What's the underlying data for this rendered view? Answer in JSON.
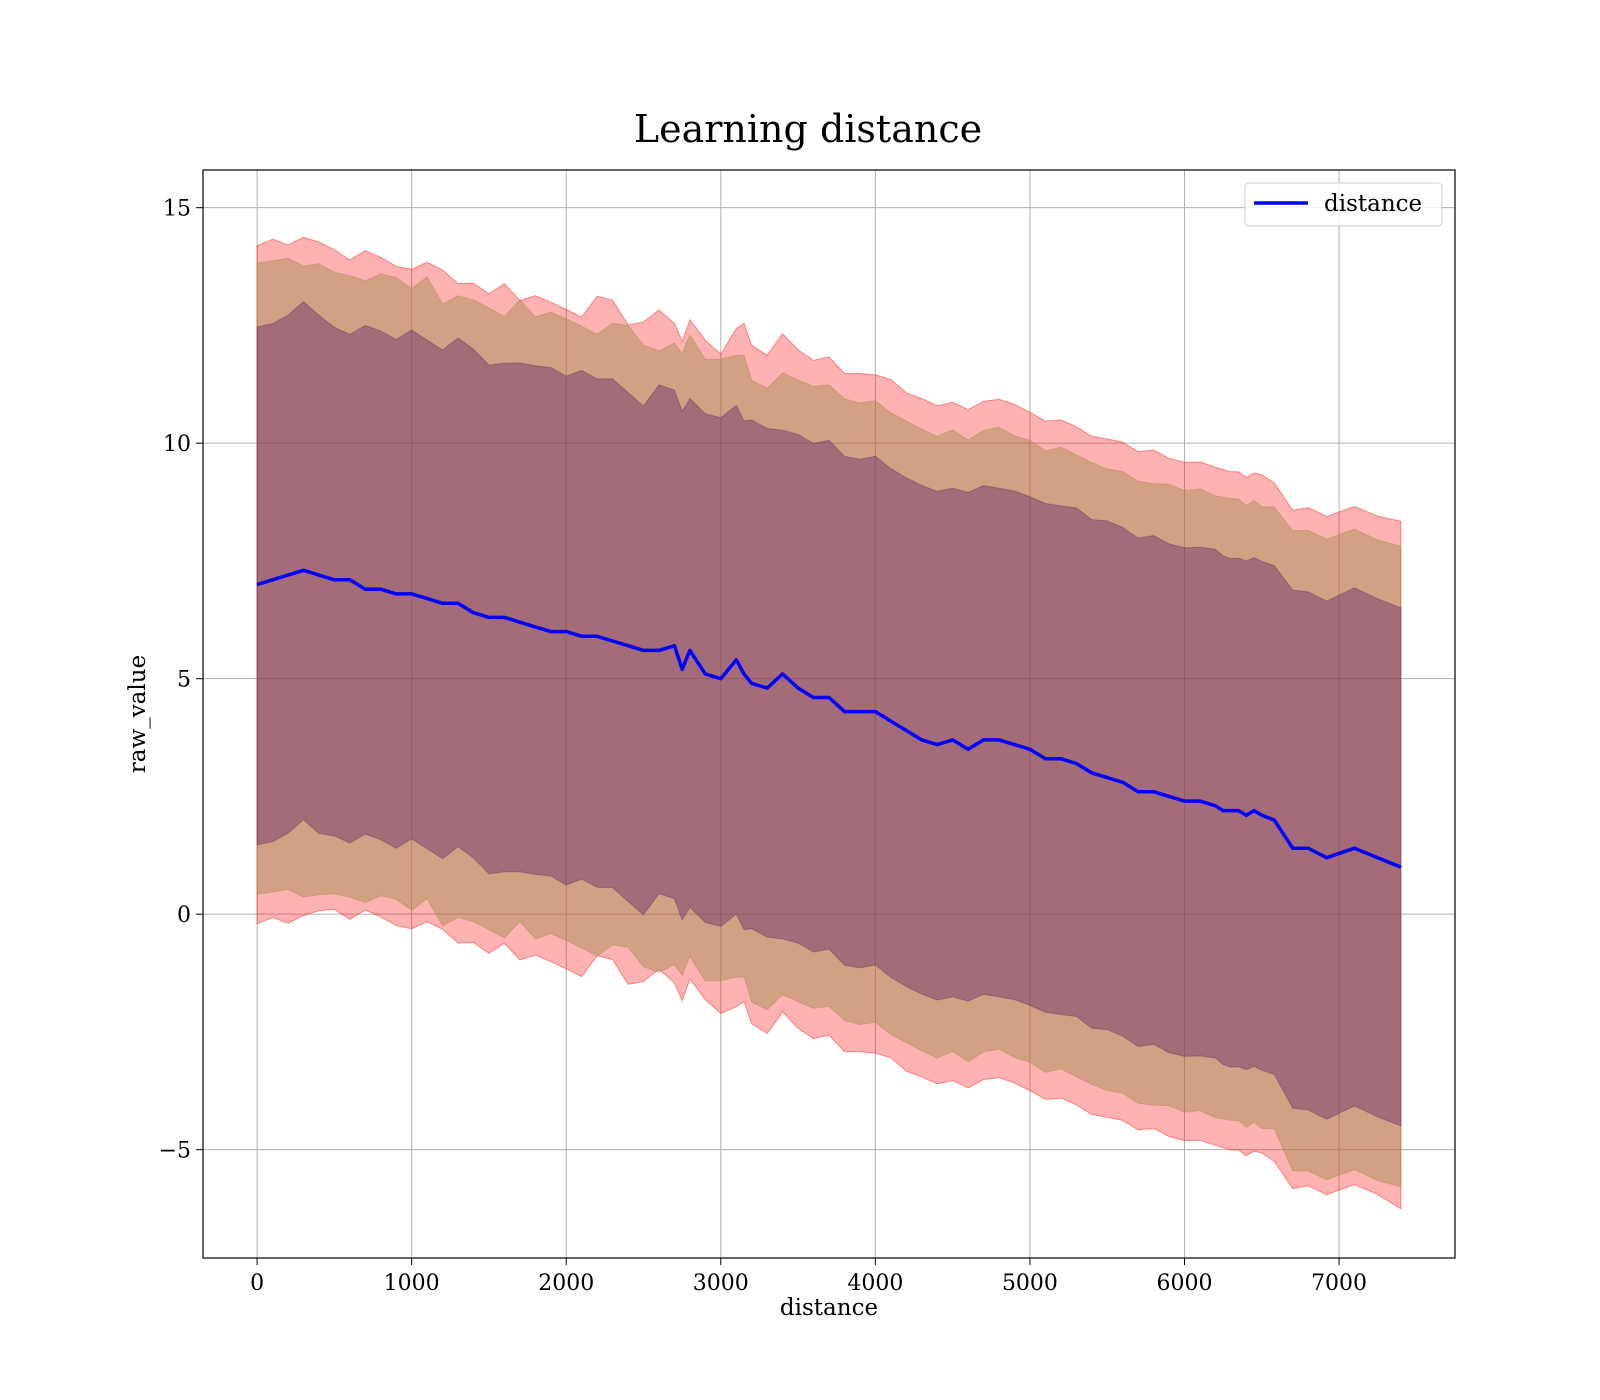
{
  "chart_data": {
    "type": "line",
    "title": "Learning distance",
    "xlabel": "distance",
    "ylabel": "raw_value",
    "xlim": [
      -350,
      7750
    ],
    "ylim": [
      -7.3,
      15.8
    ],
    "xticks": [
      0,
      1000,
      2000,
      3000,
      4000,
      5000,
      6000,
      7000
    ],
    "xtick_labels": [
      "0",
      "1000",
      "2000",
      "3000",
      "4000",
      "5000",
      "6000",
      "7000"
    ],
    "yticks": [
      -5,
      0,
      5,
      10,
      15
    ],
    "ytick_labels": [
      "−5",
      "0",
      "5",
      "10",
      "15"
    ],
    "grid": true,
    "legend": {
      "placement": "top-right",
      "entries": [
        "distance"
      ]
    },
    "colors": {
      "line": "#0000ff",
      "band": "#ff0000",
      "axis": "#000000",
      "grid": "#b0b0b0"
    },
    "series": [
      {
        "name": "distance",
        "x": [
          0,
          100,
          200,
          300,
          400,
          500,
          600,
          700,
          800,
          900,
          1000,
          1100,
          1200,
          1300,
          1400,
          1500,
          1600,
          1700,
          1800,
          1900,
          2000,
          2100,
          2200,
          2300,
          2400,
          2500,
          2600,
          2700,
          2750,
          2800,
          2900,
          3000,
          3100,
          3150,
          3200,
          3300,
          3400,
          3500,
          3600,
          3700,
          3800,
          3900,
          4000,
          4100,
          4200,
          4300,
          4400,
          4500,
          4600,
          4700,
          4800,
          4900,
          5000,
          5100,
          5200,
          5300,
          5400,
          5500,
          5600,
          5700,
          5800,
          5900,
          6000,
          6100,
          6200,
          6250,
          6300,
          6350,
          6400,
          6450,
          6500,
          6580,
          6700,
          6800,
          6920,
          7100,
          7250,
          7400
        ],
        "y": [
          7.0,
          7.1,
          7.2,
          7.3,
          7.2,
          7.1,
          7.1,
          6.9,
          6.9,
          6.8,
          6.8,
          6.7,
          6.6,
          6.6,
          6.4,
          6.3,
          6.3,
          6.2,
          6.1,
          6.0,
          6.0,
          5.9,
          5.9,
          5.8,
          5.7,
          5.6,
          5.6,
          5.7,
          5.2,
          5.6,
          5.1,
          5.0,
          5.4,
          5.1,
          4.9,
          4.8,
          5.1,
          4.8,
          4.6,
          4.6,
          4.3,
          4.3,
          4.3,
          4.1,
          3.9,
          3.7,
          3.6,
          3.7,
          3.5,
          3.7,
          3.7,
          3.6,
          3.5,
          3.3,
          3.3,
          3.2,
          3.0,
          2.9,
          2.8,
          2.6,
          2.6,
          2.5,
          2.4,
          2.4,
          2.3,
          2.2,
          2.2,
          2.2,
          2.1,
          2.2,
          2.1,
          2.0,
          1.4,
          1.4,
          1.2,
          1.4,
          1.2,
          1.0
        ]
      }
    ],
    "bands": [
      {
        "name": "outer",
        "half_width": [
          7.2,
          7.2,
          7.2,
          7.2,
          7.1,
          7.0,
          7.0,
          7.0,
          7.0,
          7.0,
          7.0,
          7.0,
          7.0,
          7.0,
          7.0,
          7.0,
          7.0,
          7.0,
          7.0,
          7.0,
          7.0,
          7.0,
          7.0,
          7.0,
          7.0,
          7.0,
          7.0,
          7.0,
          7.0,
          7.0,
          7.0,
          7.0,
          7.2,
          7.2,
          7.2,
          7.2,
          7.2,
          7.2,
          7.2,
          7.2,
          7.2,
          7.2,
          7.2,
          7.2,
          7.2,
          7.2,
          7.2,
          7.2,
          7.2,
          7.2,
          7.2,
          7.2,
          7.2,
          7.2,
          7.2,
          7.2,
          7.2,
          7.2,
          7.2,
          7.2,
          7.2,
          7.2,
          7.2,
          7.2,
          7.2,
          7.2,
          7.2,
          7.2,
          7.2,
          7.2,
          7.2,
          7.2,
          7.2,
          7.2,
          7.2,
          7.2,
          7.2,
          7.3
        ]
      },
      {
        "name": "middle",
        "half_width": [
          6.7,
          6.7,
          6.7,
          6.7,
          6.7,
          6.6,
          6.6,
          6.6,
          6.6,
          6.6,
          6.6,
          6.6,
          6.6,
          6.6,
          6.6,
          6.6,
          6.6,
          6.6,
          6.6,
          6.6,
          6.6,
          6.6,
          6.6,
          6.6,
          6.6,
          6.6,
          6.6,
          6.6,
          6.6,
          6.6,
          6.6,
          6.6,
          6.6,
          6.6,
          6.6,
          6.6,
          6.6,
          6.6,
          6.6,
          6.6,
          6.6,
          6.6,
          6.6,
          6.6,
          6.6,
          6.6,
          6.6,
          6.6,
          6.6,
          6.6,
          6.6,
          6.6,
          6.6,
          6.6,
          6.6,
          6.6,
          6.6,
          6.6,
          6.6,
          6.6,
          6.6,
          6.6,
          6.6,
          6.6,
          6.6,
          6.6,
          6.6,
          6.6,
          6.6,
          6.6,
          6.6,
          6.6,
          6.8,
          6.8,
          6.8,
          6.8,
          6.8,
          6.8
        ]
      },
      {
        "name": "inner",
        "half_width": [
          5.5,
          5.5,
          5.5,
          5.5,
          5.5,
          5.4,
          5.4,
          5.4,
          5.4,
          5.4,
          5.4,
          5.4,
          5.4,
          5.4,
          5.4,
          5.4,
          5.4,
          5.4,
          5.4,
          5.4,
          5.4,
          5.4,
          5.4,
          5.4,
          5.4,
          5.4,
          5.4,
          5.4,
          5.4,
          5.4,
          5.4,
          5.4,
          5.4,
          5.4,
          5.4,
          5.4,
          5.4,
          5.4,
          5.4,
          5.4,
          5.4,
          5.4,
          5.4,
          5.4,
          5.4,
          5.4,
          5.4,
          5.4,
          5.4,
          5.4,
          5.4,
          5.4,
          5.4,
          5.4,
          5.4,
          5.4,
          5.4,
          5.4,
          5.4,
          5.4,
          5.4,
          5.4,
          5.4,
          5.4,
          5.4,
          5.4,
          5.4,
          5.4,
          5.4,
          5.4,
          5.4,
          5.4,
          5.5,
          5.5,
          5.5,
          5.5,
          5.5,
          5.5
        ]
      }
    ]
  }
}
